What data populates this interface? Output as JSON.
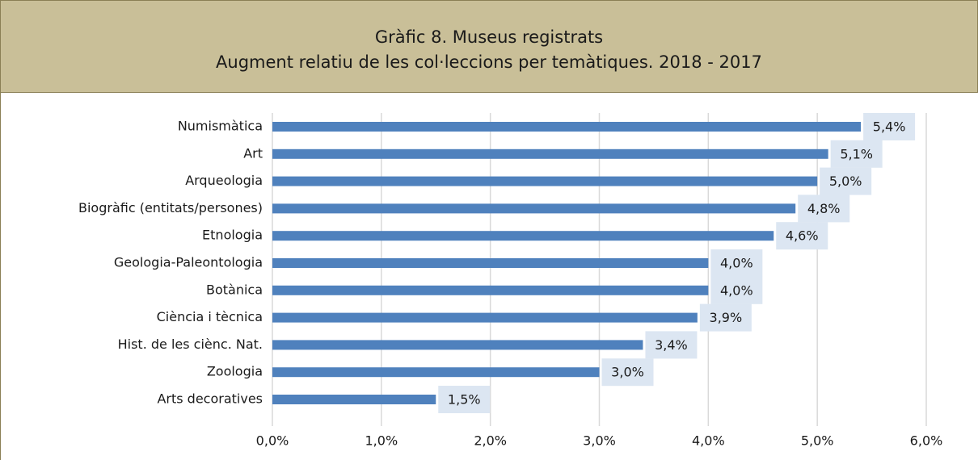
{
  "chart_data": {
    "type": "bar",
    "orientation": "horizontal",
    "title": "Gràfic 8. Museus registrats",
    "subtitle": "Augment relatiu de les col·leccions per temàtiques. 2018 - 2017",
    "categories": [
      "Numismàtica",
      "Art",
      "Arqueologia",
      "Biogràfic (entitats/persones)",
      "Etnologia",
      "Geologia-Paleontologia",
      "Botànica",
      "Ciència i tècnica",
      "Hist. de les ciènc. Nat.",
      "Zoologia",
      "Arts decoratives"
    ],
    "values": [
      5.4,
      5.1,
      5.0,
      4.8,
      4.6,
      4.0,
      4.0,
      3.9,
      3.4,
      3.0,
      1.5
    ],
    "value_labels": [
      "5,4%",
      "5,1%",
      "5,0%",
      "4,8%",
      "4,6%",
      "4,0%",
      "4,0%",
      "3,9%",
      "3,4%",
      "3,0%",
      "1,5%"
    ],
    "color": "#4f81bd",
    "xlim": [
      0,
      6
    ],
    "xticks": [
      {
        "value": 0,
        "label": "0,0%"
      },
      {
        "value": 1,
        "label": "1,0%"
      },
      {
        "value": 2,
        "label": "2,0%"
      },
      {
        "value": 3,
        "label": "3,0%"
      },
      {
        "value": 4,
        "label": "4,0%"
      },
      {
        "value": 5,
        "label": "5,0%"
      },
      {
        "value": 6,
        "label": "6,0%"
      }
    ],
    "grid": true
  }
}
